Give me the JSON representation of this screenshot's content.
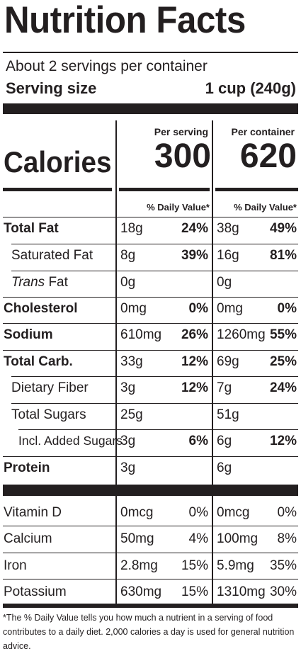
{
  "label": {
    "title": "Nutrition Facts",
    "servings_per_container": "About 2 servings per container",
    "serving_size_label": "Serving size",
    "serving_size_value": "1 cup (240g)",
    "column_headers": [
      "Per serving",
      "Per container"
    ],
    "calories_label": "Calories",
    "calories": [
      "300",
      "620"
    ],
    "daily_value_header": "% Daily Value*",
    "nutrients": [
      {
        "name": "Total Fat",
        "serving_amount": "18g",
        "serving_dv": "24%",
        "container_amount": "38g",
        "container_dv": "49%"
      },
      {
        "name": "Saturated Fat",
        "serving_amount": "8g",
        "serving_dv": "39%",
        "container_amount": "16g",
        "container_dv": "81%"
      },
      {
        "name_italic": "Trans",
        "name_rest": " Fat",
        "serving_amount": "0g",
        "serving_dv": "",
        "container_amount": "0g",
        "container_dv": ""
      },
      {
        "name": "Cholesterol",
        "serving_amount": "0mg",
        "serving_dv": "0%",
        "container_amount": "0mg",
        "container_dv": "0%"
      },
      {
        "name": "Sodium",
        "serving_amount": "610mg",
        "serving_dv": "26%",
        "container_amount": "1260mg",
        "container_dv": "55%"
      },
      {
        "name": "Total Carb.",
        "serving_amount": "33g",
        "serving_dv": "12%",
        "container_amount": "69g",
        "container_dv": "25%"
      },
      {
        "name": "Dietary Fiber",
        "serving_amount": "3g",
        "serving_dv": "12%",
        "container_amount": "7g",
        "container_dv": "24%"
      },
      {
        "name": "Total Sugars",
        "serving_amount": "25g",
        "serving_dv": "",
        "container_amount": "51g",
        "container_dv": ""
      },
      {
        "name": "Incl. Added Sugars",
        "serving_amount": "3g",
        "serving_dv": "6%",
        "container_amount": "6g",
        "container_dv": "12%"
      },
      {
        "name": "Protein",
        "serving_amount": "3g",
        "serving_dv": "",
        "container_amount": "6g",
        "container_dv": ""
      }
    ],
    "vitamins": [
      {
        "name": "Vitamin D",
        "serving_amount": "0mcg",
        "serving_dv": "0%",
        "container_amount": "0mcg",
        "container_dv": "0%"
      },
      {
        "name": "Calcium",
        "serving_amount": "50mg",
        "serving_dv": "4%",
        "container_amount": "100mg",
        "container_dv": "8%"
      },
      {
        "name": "Iron",
        "serving_amount": "2.8mg",
        "serving_dv": "15%",
        "container_amount": "5.9mg",
        "container_dv": "35%"
      },
      {
        "name": "Potassium",
        "serving_amount": "630mg",
        "serving_dv": "15%",
        "container_amount": "1310mg",
        "container_dv": "30%"
      }
    ],
    "footnote": "*The % Daily Value tells you how much a nutrient in a serving of food contributes to a daily diet. 2,000 calories a day is used for general nutrition advice."
  }
}
